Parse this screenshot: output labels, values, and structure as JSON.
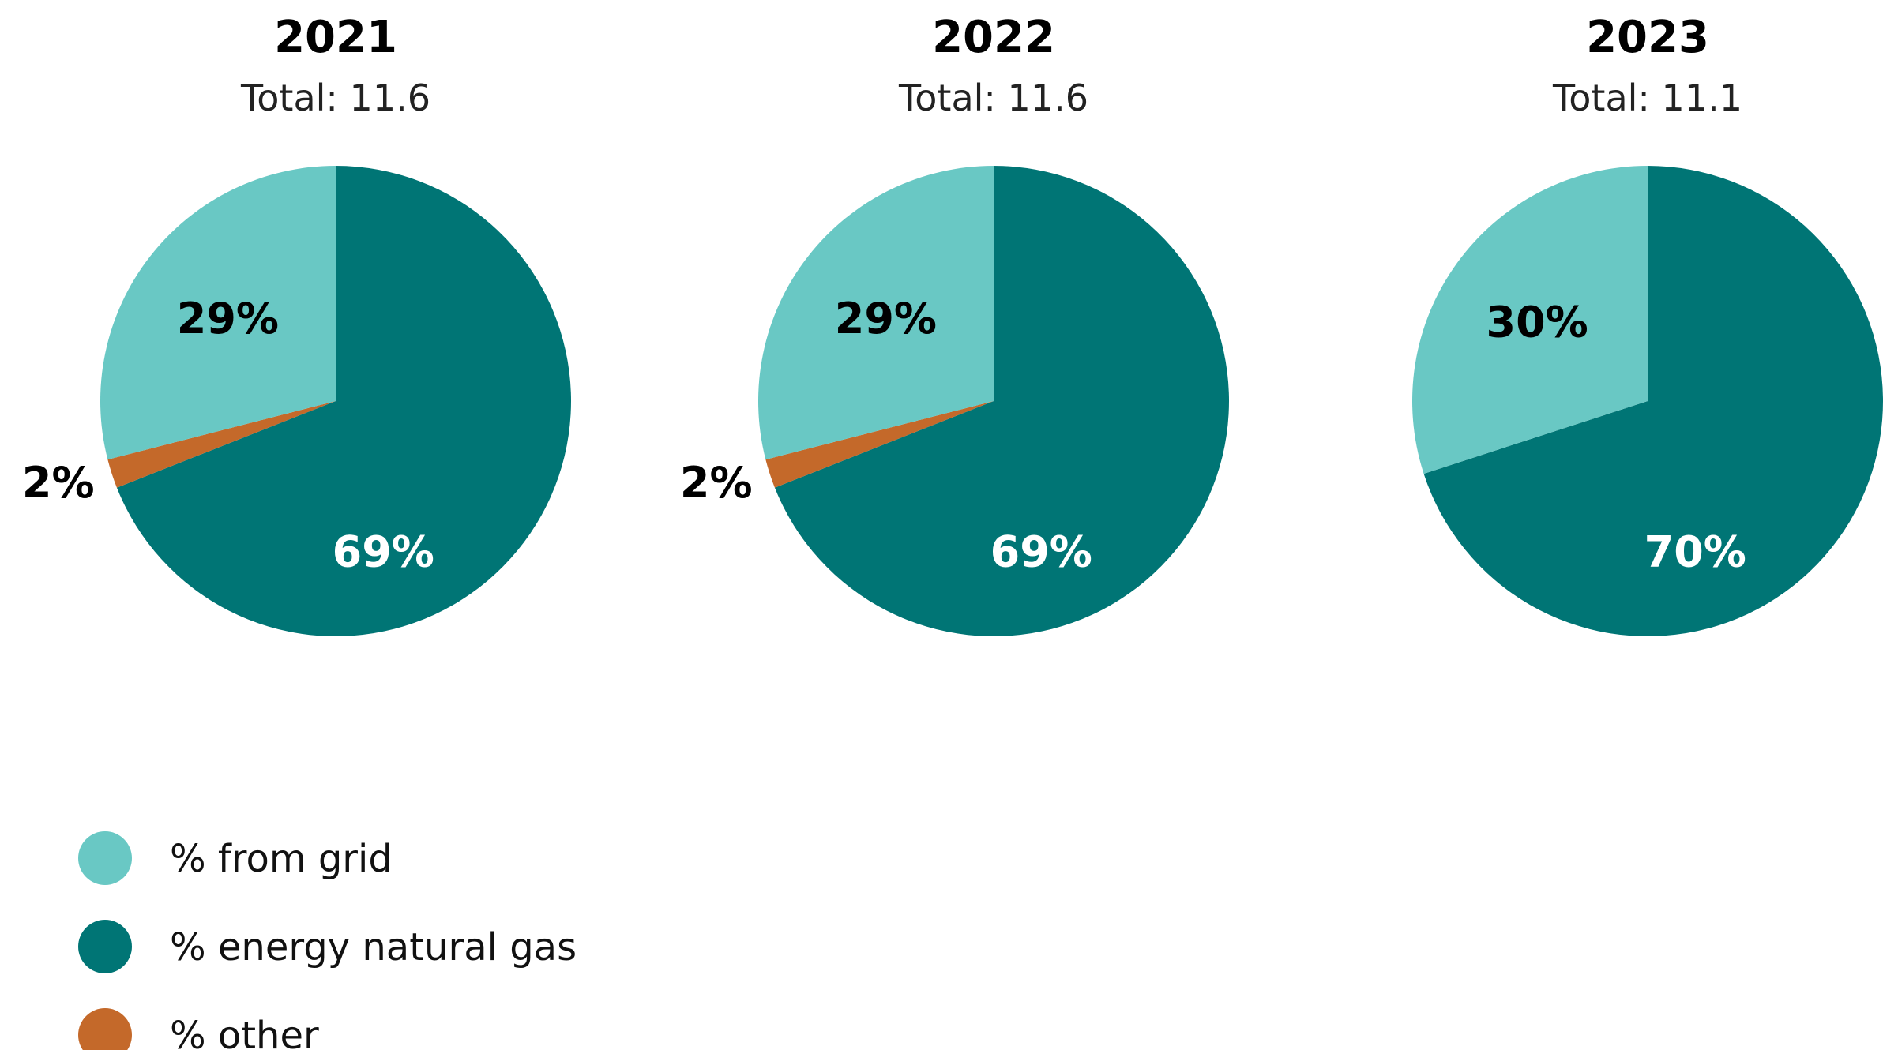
{
  "chart_data": [
    {
      "type": "pie",
      "title": "2021",
      "subtitle": "Total: 11.6",
      "series": [
        {
          "name": "% from grid",
          "value": 29,
          "label": "29%"
        },
        {
          "name": "% energy natural gas",
          "value": 69,
          "label": "69%"
        },
        {
          "name": "% other",
          "value": 2,
          "label": "2%"
        }
      ]
    },
    {
      "type": "pie",
      "title": "2022",
      "subtitle": "Total: 11.6",
      "series": [
        {
          "name": "% from grid",
          "value": 29,
          "label": "29%"
        },
        {
          "name": "% energy natural gas",
          "value": 69,
          "label": "69%"
        },
        {
          "name": "% other",
          "value": 2,
          "label": "2%"
        }
      ]
    },
    {
      "type": "pie",
      "title": "2023",
      "subtitle": "Total: 11.1",
      "series": [
        {
          "name": "% from grid",
          "value": 30,
          "label": "30%"
        },
        {
          "name": "% energy natural gas",
          "value": 70,
          "label": "70%"
        },
        {
          "name": "% other",
          "value": 0,
          "label": ""
        }
      ]
    }
  ],
  "legend": {
    "position": "bottom-left",
    "items": [
      {
        "label": "% from grid",
        "color": "#69C8C4"
      },
      {
        "label": "% energy natural gas",
        "color": "#007575"
      },
      {
        "label": "% other",
        "color": "#C4692A"
      }
    ]
  },
  "colors": {
    "grid": "#69C8C4",
    "gas": "#007575",
    "other": "#C4692A",
    "label_dark": "#000000",
    "label_light": "#FFFFFF"
  }
}
